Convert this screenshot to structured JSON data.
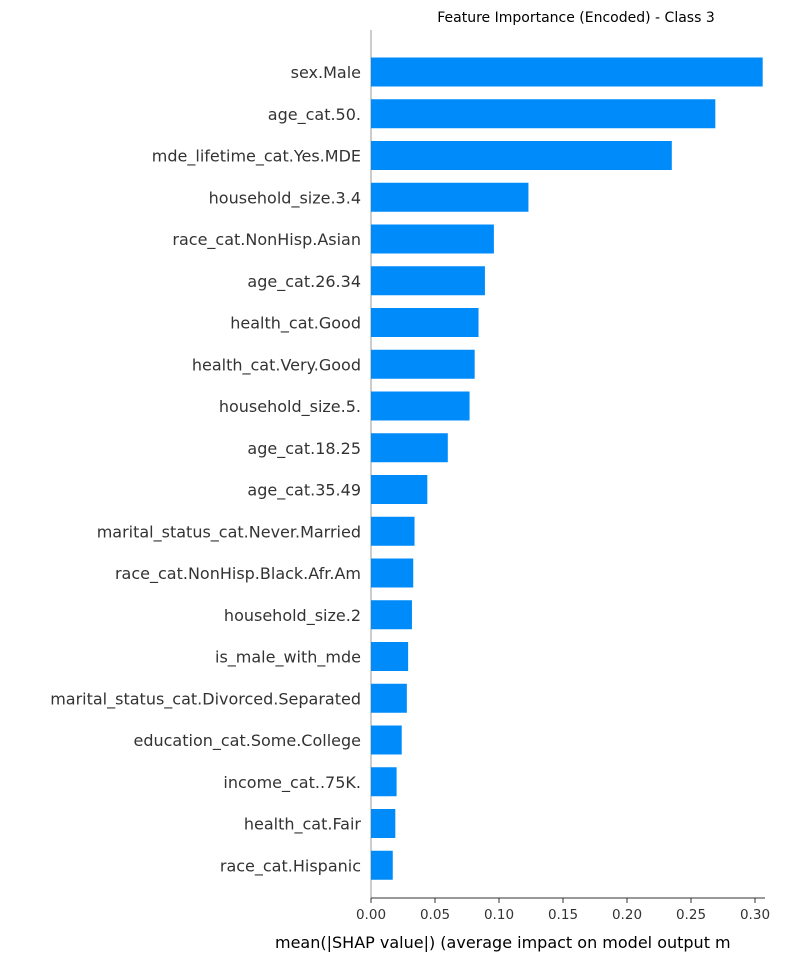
{
  "chart_data": {
    "type": "bar",
    "orientation": "horizontal",
    "title": "Feature Importance (Encoded) - Class 3",
    "xlabel": "mean(|SHAP value|) (average impact on model output m",
    "ylabel": "",
    "xlim": [
      0,
      0.31
    ],
    "xticks": [
      "0.00",
      "0.05",
      "0.10",
      "0.15",
      "0.20",
      "0.25",
      "0.30"
    ],
    "color": "#008bfb",
    "categories": [
      "sex.Male",
      "age_cat.50.",
      "mde_lifetime_cat.Yes.MDE",
      "household_size.3.4",
      "race_cat.NonHisp.Asian",
      "age_cat.26.34",
      "health_cat.Good",
      "health_cat.Very.Good",
      "household_size.5.",
      "age_cat.18.25",
      "age_cat.35.49",
      "marital_status_cat.Never.Married",
      "race_cat.NonHisp.Black.Afr.Am",
      "household_size.2",
      "is_male_with_mde",
      "marital_status_cat.Divorced.Separated",
      "education_cat.Some.College",
      "income_cat..75K.",
      "health_cat.Fair",
      "race_cat.Hispanic"
    ],
    "values": [
      0.306,
      0.269,
      0.235,
      0.123,
      0.096,
      0.089,
      0.084,
      0.081,
      0.077,
      0.06,
      0.044,
      0.034,
      0.033,
      0.032,
      0.029,
      0.028,
      0.024,
      0.02,
      0.019,
      0.017
    ]
  }
}
